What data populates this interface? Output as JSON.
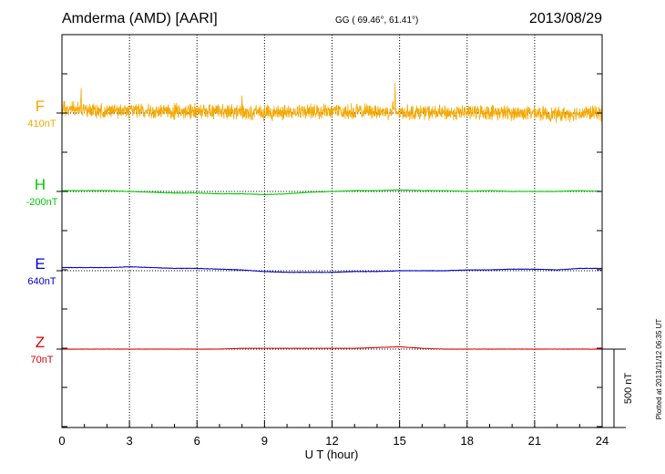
{
  "header": {
    "station": "Amderma (AMD)  [AARI]",
    "coords": "GG ( 69.46°,  61.41°)",
    "date": "2013/08/29"
  },
  "plotted_note": "Plotted at 2013/11/12 06:35 UT",
  "scale_bar_label": "500 nT",
  "chart_data": {
    "type": "line",
    "xlabel": "U T (hour)",
    "xlim": [
      0,
      24
    ],
    "xticks": [
      "0",
      "3",
      "6",
      "9",
      "12",
      "15",
      "18",
      "21",
      "24"
    ],
    "grid": "vertical dotted lines every 3 hours",
    "scale_bar_nT": 500,
    "series": [
      {
        "name": "F",
        "baseline_label": "410nT",
        "color": "#f5a800",
        "noise_nT": 55,
        "x": [
          0,
          0.5,
          1,
          2,
          3,
          4,
          5,
          6,
          7,
          8,
          9,
          10,
          11,
          12,
          13,
          14,
          15,
          16,
          17,
          18,
          19,
          20,
          21,
          22,
          23,
          24
        ],
        "values": [
          30,
          30,
          20,
          15,
          15,
          10,
          10,
          10,
          15,
          5,
          0,
          5,
          10,
          10,
          10,
          10,
          5,
          5,
          0,
          5,
          5,
          0,
          0,
          -10,
          0,
          0
        ],
        "spikes": [
          [
            0.85,
            180
          ],
          [
            14.8,
            190
          ],
          [
            8.0,
            110
          ],
          [
            14.7,
            95
          ],
          [
            6.3,
            70
          ]
        ]
      },
      {
        "name": "H",
        "baseline_label": "-200nT",
        "color": "#00cc00",
        "noise_nT": 3,
        "x": [
          0,
          1,
          2,
          3,
          4,
          5,
          6,
          7,
          8,
          9,
          10,
          11,
          12,
          13,
          14,
          15,
          16,
          17,
          18,
          19,
          20,
          21,
          22,
          23,
          24
        ],
        "values": [
          5,
          5,
          5,
          0,
          -5,
          -10,
          -10,
          -15,
          -15,
          -20,
          -15,
          -5,
          0,
          5,
          5,
          10,
          5,
          5,
          0,
          5,
          0,
          0,
          0,
          5,
          0
        ]
      },
      {
        "name": "E",
        "baseline_label": "640nT",
        "color": "#0000cc",
        "noise_nT": 3,
        "x": [
          0,
          1,
          2,
          3,
          4,
          5,
          6,
          7,
          8,
          9,
          10,
          11,
          12,
          13,
          14,
          15,
          16,
          17,
          18,
          19,
          20,
          21,
          22,
          23,
          24
        ],
        "values": [
          20,
          20,
          20,
          25,
          20,
          15,
          15,
          10,
          5,
          -5,
          -10,
          -10,
          -10,
          -5,
          -5,
          0,
          0,
          0,
          5,
          5,
          10,
          10,
          5,
          15,
          15
        ]
      },
      {
        "name": "Z",
        "baseline_label": "70nT",
        "color": "#dd0000",
        "noise_nT": 2,
        "x": [
          0,
          1,
          2,
          3,
          4,
          5,
          6,
          7,
          8,
          9,
          10,
          11,
          12,
          13,
          14,
          15,
          16,
          17,
          18,
          19,
          20,
          21,
          22,
          23,
          24
        ],
        "values": [
          0,
          0,
          0,
          0,
          0,
          0,
          0,
          0,
          5,
          5,
          5,
          5,
          5,
          5,
          10,
          15,
          5,
          0,
          0,
          0,
          0,
          0,
          0,
          0,
          0
        ]
      }
    ]
  }
}
